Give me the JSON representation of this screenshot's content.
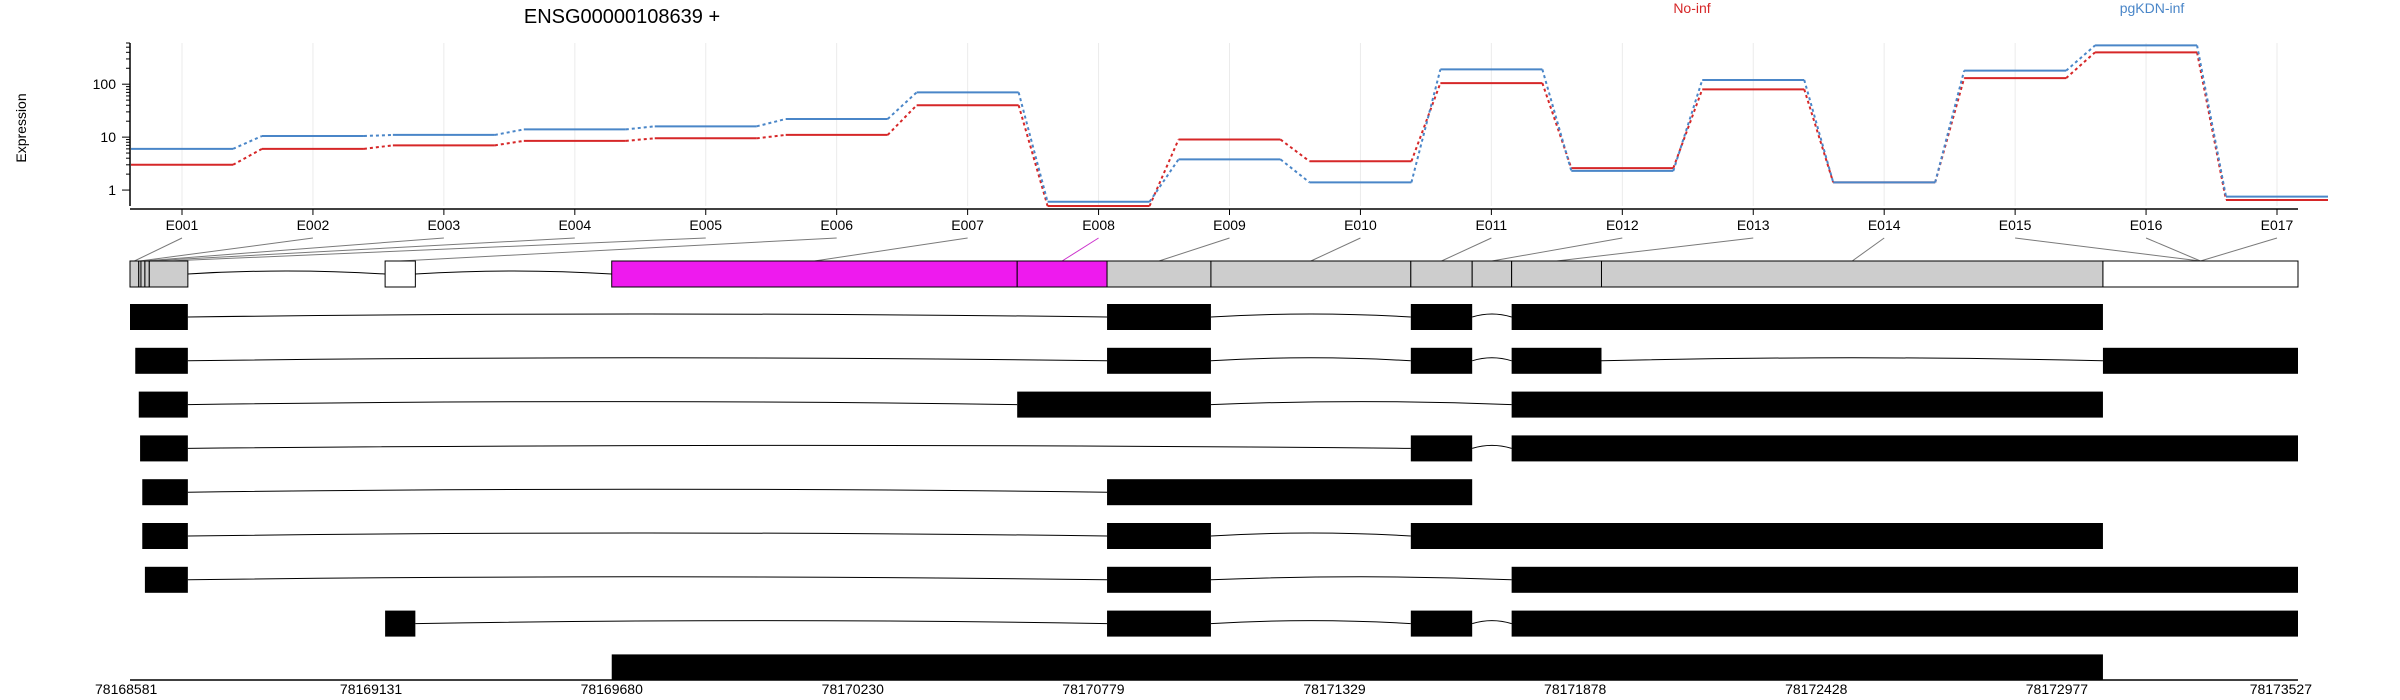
{
  "chart_data": {
    "type": "line",
    "title": "ENSG00000108639 +",
    "ylabel": "Expression",
    "yscale": "log",
    "ylim": [
      0.5,
      600
    ],
    "ytick_labels": [
      "1",
      "10",
      "100"
    ],
    "ytick_values": [
      1,
      10,
      100
    ],
    "categories": [
      "E001",
      "E002",
      "E003",
      "E004",
      "E005",
      "E006",
      "E007",
      "E008",
      "E009",
      "E010",
      "E011",
      "E012",
      "E013",
      "E014",
      "E015",
      "E016",
      "E017"
    ],
    "series": [
      {
        "name": "No-inf",
        "color": "#d62728",
        "values": [
          3.0,
          6.0,
          7.0,
          8.5,
          9.5,
          11,
          40,
          0.5,
          9.0,
          3.5,
          105,
          2.6,
          80,
          1.4,
          130,
          400,
          0.65
        ]
      },
      {
        "name": "pgKDN-inf",
        "color": "#4a86c8",
        "values": [
          6.0,
          10.5,
          11,
          14,
          16,
          22,
          70,
          0.6,
          3.8,
          1.4,
          190,
          2.3,
          120,
          1.4,
          180,
          540,
          0.75
        ]
      }
    ],
    "gene_model_segments": [
      {
        "start": 78168581,
        "end": 78168601,
        "fill": "gray"
      },
      {
        "start": 78168601,
        "end": 78168606,
        "fill": "gray"
      },
      {
        "start": 78168606,
        "end": 78168615,
        "fill": "gray"
      },
      {
        "start": 78168615,
        "end": 78168625,
        "fill": "gray"
      },
      {
        "start": 78168625,
        "end": 78168713,
        "fill": "gray"
      },
      {
        "start": 78169163,
        "end": 78169232,
        "fill": "white"
      },
      {
        "start": 78169680,
        "end": 78170605,
        "fill": "magenta"
      },
      {
        "start": 78170605,
        "end": 78170810,
        "fill": "magenta"
      },
      {
        "start": 78170810,
        "end": 78171047,
        "fill": "gray"
      },
      {
        "start": 78171047,
        "end": 78171503,
        "fill": "gray"
      },
      {
        "start": 78171503,
        "end": 78171643,
        "fill": "gray"
      },
      {
        "start": 78171643,
        "end": 78171733,
        "fill": "gray"
      },
      {
        "start": 78171733,
        "end": 78171938,
        "fill": "gray"
      },
      {
        "start": 78171938,
        "end": 78173082,
        "fill": "gray"
      },
      {
        "start": 78173082,
        "end": 78173527,
        "fill": "white"
      }
    ],
    "transcripts": [
      [
        [
          78168581,
          78168713
        ],
        [
          78170810,
          78171047
        ],
        [
          78171503,
          78171643
        ],
        [
          78171733,
          78173082
        ]
      ],
      [
        [
          78168593,
          78168713
        ],
        [
          78170810,
          78171047
        ],
        [
          78171503,
          78171643
        ],
        [
          78171733,
          78171938
        ],
        [
          78173082,
          78173527
        ]
      ],
      [
        [
          78168601,
          78168713
        ],
        [
          78170605,
          78171047
        ],
        [
          78171733,
          78173082
        ]
      ],
      [
        [
          78168604,
          78168713
        ],
        [
          78171503,
          78171643
        ],
        [
          78171733,
          78173527
        ]
      ],
      [
        [
          78168609,
          78168713
        ],
        [
          78170810,
          78171643
        ]
      ],
      [
        [
          78168609,
          78168713
        ],
        [
          78170810,
          78171047
        ],
        [
          78171503,
          78173082
        ]
      ],
      [
        [
          78168615,
          78168713
        ],
        [
          78170810,
          78171047
        ],
        [
          78171733,
          78173527
        ]
      ],
      [
        [
          78169163,
          78169232
        ],
        [
          78170810,
          78171047
        ],
        [
          78171503,
          78171643
        ],
        [
          78171733,
          78173527
        ]
      ],
      [
        [
          78169680,
          78173082
        ]
      ]
    ],
    "genomic_ticks": [
      "78168581",
      "78169131",
      "78169680",
      "78170230",
      "78170779",
      "78171329",
      "78171878",
      "78172428",
      "78172977",
      "78173527"
    ],
    "genomic_range": [
      78168581,
      78173527
    ]
  }
}
